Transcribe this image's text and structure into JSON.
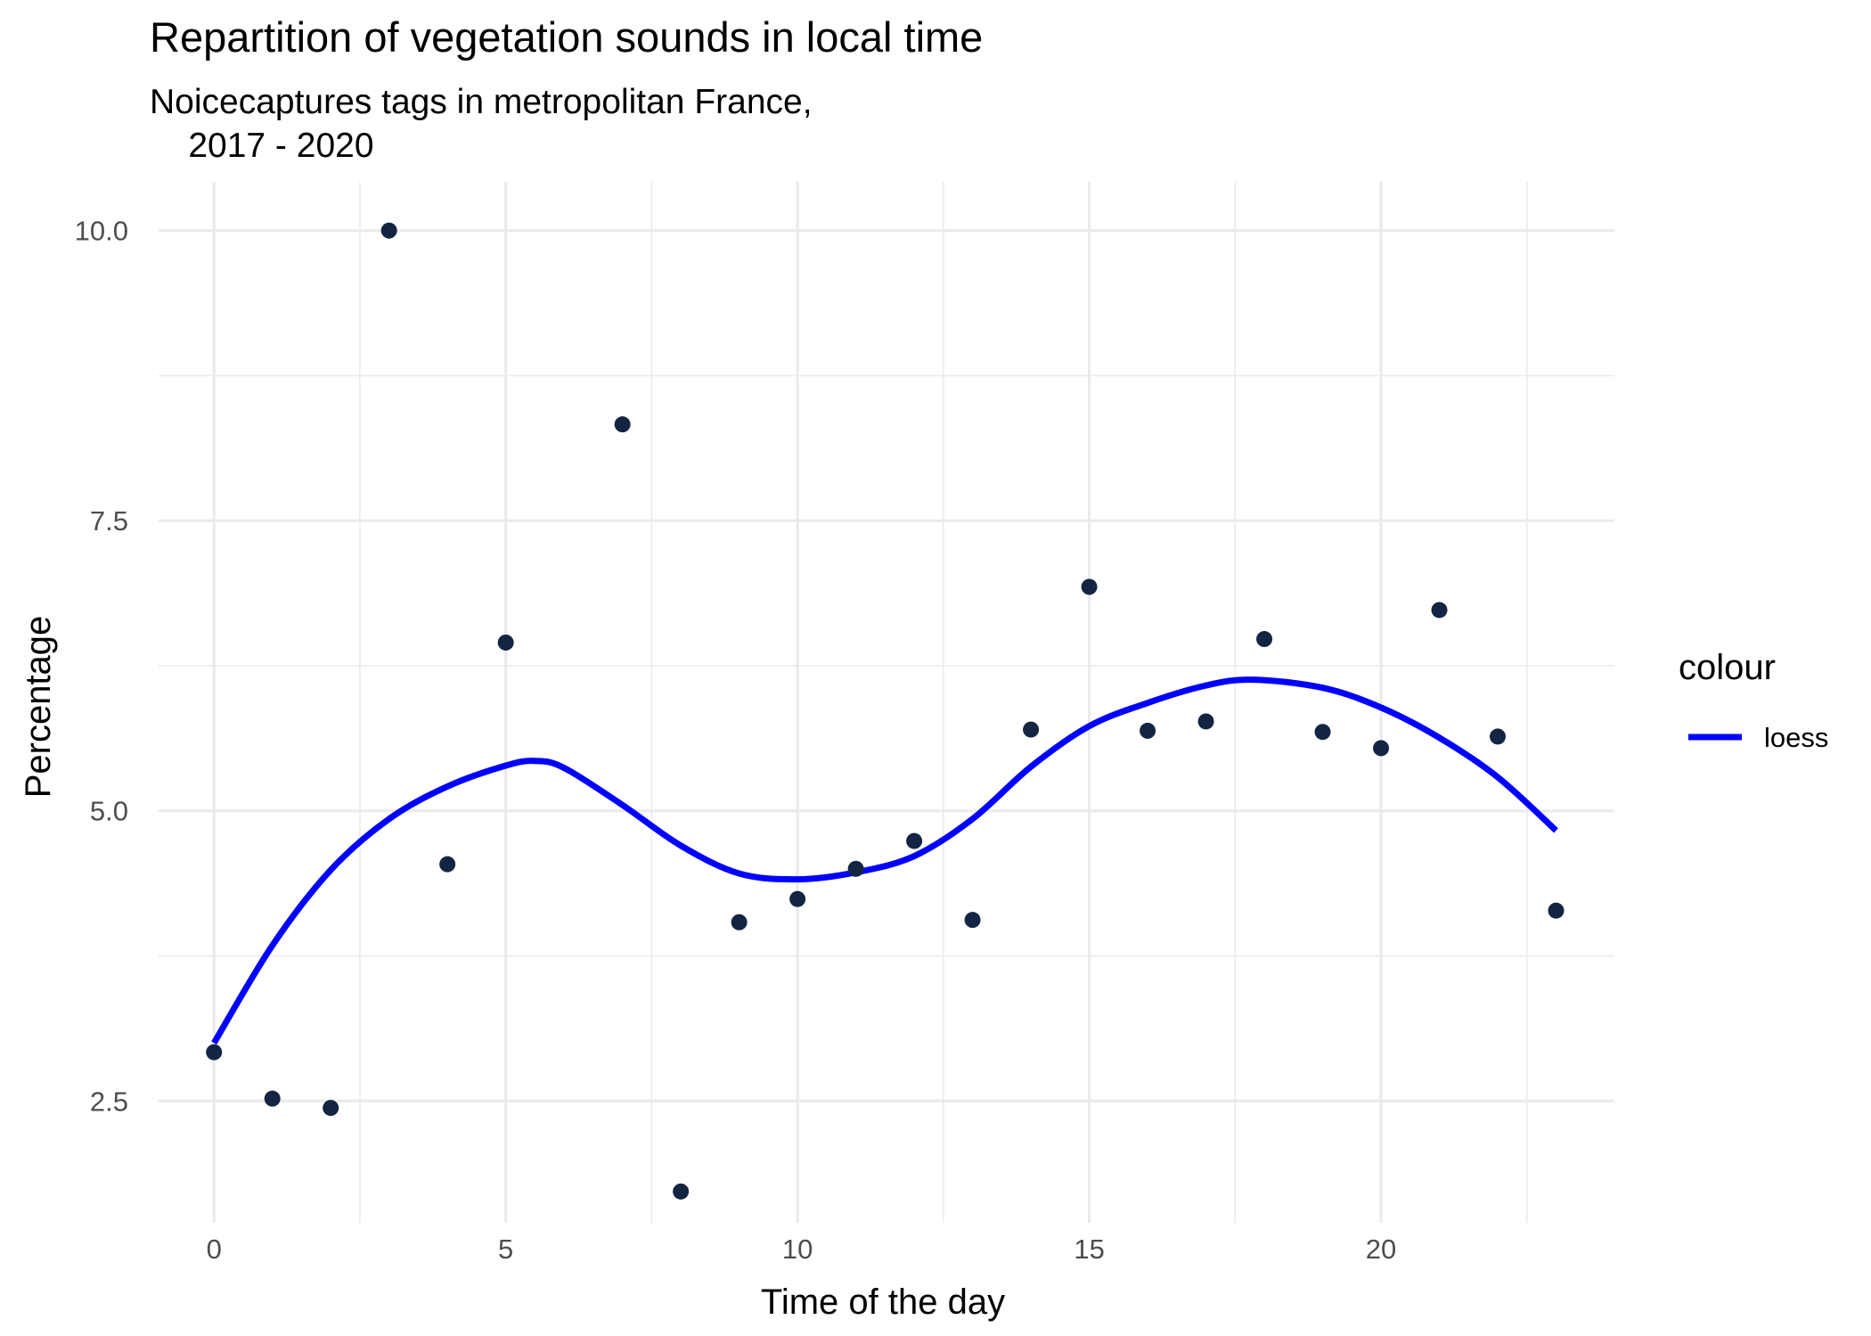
{
  "chart_data": {
    "type": "scatter",
    "title": "Repartition of vegetation sounds in local time",
    "subtitle": "Noicecaptures tags in metropolitan France,\n    2017 - 2020",
    "xlabel": "Time of the day",
    "ylabel": "Percentage",
    "xlim": [
      -0.95,
      24.0
    ],
    "ylim": [
      1.45,
      10.42
    ],
    "x_ticks": [
      0,
      5,
      10,
      15,
      20
    ],
    "y_ticks": [
      2.5,
      5.0,
      7.5,
      10.0
    ],
    "x_tick_labels": [
      "0",
      "5",
      "10",
      "15",
      "20"
    ],
    "y_tick_labels": [
      "2.5",
      "5.0",
      "7.5",
      "10.0"
    ],
    "grid": true,
    "points": {
      "color": "#132543",
      "x": [
        0,
        1,
        2,
        3,
        4,
        5,
        7,
        8,
        9,
        10,
        11,
        12,
        13,
        14,
        15,
        16,
        17,
        18,
        19,
        20,
        21,
        22,
        23
      ],
      "y": [
        2.92,
        2.52,
        2.44,
        10.0,
        4.54,
        6.45,
        8.33,
        1.72,
        4.04,
        4.24,
        4.5,
        4.74,
        4.06,
        5.7,
        6.93,
        5.69,
        5.77,
        6.48,
        5.68,
        5.54,
        6.73,
        5.64,
        4.14
      ]
    },
    "series": [
      {
        "name": "loess",
        "color": "#0000ff",
        "x": [
          0,
          1,
          2,
          3,
          4,
          5,
          5.5,
          6,
          7,
          8,
          9,
          10,
          11,
          12,
          13,
          14,
          15,
          16,
          17,
          17.8,
          19,
          20,
          21,
          22,
          23
        ],
        "y": [
          3.0,
          3.84,
          4.49,
          4.93,
          5.21,
          5.39,
          5.43,
          5.37,
          5.05,
          4.7,
          4.46,
          4.41,
          4.47,
          4.61,
          4.93,
          5.38,
          5.73,
          5.93,
          6.08,
          6.13,
          6.06,
          5.89,
          5.63,
          5.29,
          4.83
        ]
      }
    ],
    "legend": {
      "title": "colour",
      "position": "right"
    }
  }
}
